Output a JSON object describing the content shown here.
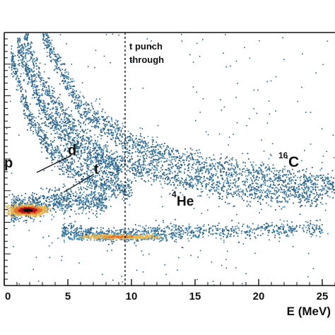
{
  "chart_data": {
    "type": "scatter",
    "title": "",
    "xlabel": "E (MeV)",
    "ylabel": "",
    "xlim": [
      0,
      26
    ],
    "x_ticks": [
      0,
      5,
      10,
      15,
      20,
      25
    ],
    "x_tick_labels": [
      "0",
      "5",
      "10",
      "15",
      "20",
      "25"
    ],
    "grid": false,
    "colormap": [
      "#2b5f86",
      "#4a8fb5",
      "#e6b651",
      "#e0742b",
      "#b3121a",
      "#000000"
    ],
    "frame_color": "#111111",
    "punch_through_line": {
      "x": 9.5,
      "label_line1": "t punch",
      "label_line2": "through"
    },
    "annotations": {
      "p": "p",
      "d": "d",
      "t": "t",
      "he4_sup": "4",
      "he4_base": "He",
      "c16_sup": "16",
      "c16_base": "C"
    },
    "bands": [
      {
        "name": "p",
        "points": [
          [
            0.5,
            0.3
          ],
          [
            1.5,
            0.31
          ],
          [
            3,
            0.33
          ],
          [
            5,
            0.34
          ],
          [
            8,
            0.34
          ]
        ]
      },
      {
        "name": "d",
        "points": [
          [
            0.5,
            0.9
          ],
          [
            2,
            0.66
          ],
          [
            4,
            0.52
          ],
          [
            6,
            0.44
          ],
          [
            8,
            0.4
          ],
          [
            10,
            0.37
          ]
        ]
      },
      {
        "name": "t",
        "points": [
          [
            1,
            0.95
          ],
          [
            3,
            0.7
          ],
          [
            5,
            0.58
          ],
          [
            7,
            0.5
          ],
          [
            9,
            0.46
          ]
        ]
      },
      {
        "name": "4He",
        "points": [
          [
            1.5,
            1.0
          ],
          [
            3,
            0.8
          ],
          [
            5,
            0.65
          ],
          [
            8,
            0.52
          ],
          [
            12,
            0.44
          ],
          [
            18,
            0.38
          ],
          [
            25,
            0.35
          ]
        ]
      },
      {
        "name": "16C",
        "points": [
          [
            3,
            1.0
          ],
          [
            6,
            0.7
          ],
          [
            10,
            0.56
          ],
          [
            15,
            0.48
          ],
          [
            20,
            0.44
          ],
          [
            26,
            0.4
          ]
        ]
      },
      {
        "name": "low",
        "points": [
          [
            4.5,
            0.22
          ],
          [
            8,
            0.2
          ],
          [
            12,
            0.21
          ],
          [
            18,
            0.22
          ],
          [
            25,
            0.23
          ]
        ]
      }
    ]
  }
}
